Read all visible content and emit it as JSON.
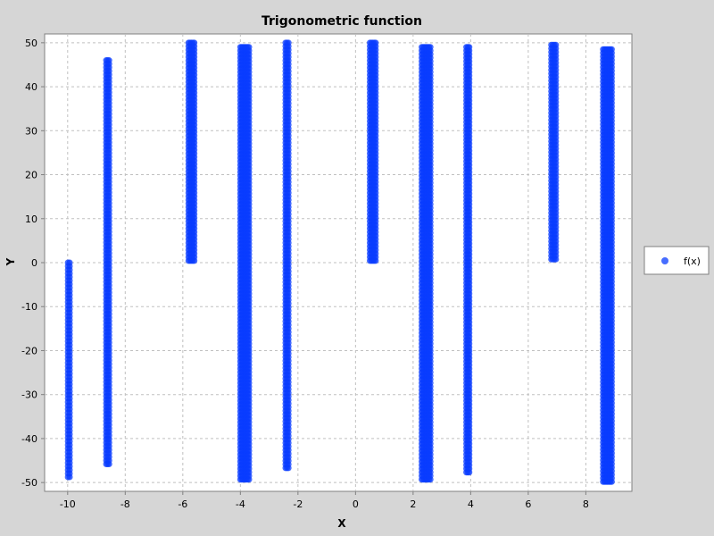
{
  "chart_data": {
    "type": "scatter",
    "title": "Trigonometric function",
    "xlabel": "X",
    "ylabel": "Y",
    "xlim": [
      -10.8,
      9.6
    ],
    "ylim": [
      -52,
      52
    ],
    "xticks": [
      -10,
      -8,
      -6,
      -4,
      -2,
      0,
      2,
      4,
      6,
      8
    ],
    "yticks": [
      -50,
      -40,
      -30,
      -20,
      -10,
      0,
      10,
      20,
      30,
      40,
      50
    ],
    "grid": true,
    "legend_position": "right",
    "colors": {
      "series": "#0a3cff",
      "background": "#d6d6d6",
      "plot": "#ffffff",
      "grid": "#c0c0c0"
    },
    "series": [
      {
        "name": "f(x)",
        "bands": [
          {
            "x": [
              -9.99,
              -9.93
            ],
            "y": [
              -49,
              0
            ]
          },
          {
            "x": [
              -8.66,
              -8.56
            ],
            "y": [
              -46.5,
              46
            ]
          },
          {
            "x": [
              -5.8,
              -5.6
            ],
            "y": [
              0,
              50
            ]
          },
          {
            "x": [
              -4.0,
              -3.7
            ],
            "y": [
              -50,
              49
            ]
          },
          {
            "x": [
              -2.43,
              -2.33
            ],
            "y": [
              -47,
              50
            ]
          },
          {
            "x": [
              0.5,
              0.7
            ],
            "y": [
              0,
              50
            ]
          },
          {
            "x": [
              2.3,
              2.6
            ],
            "y": [
              -50,
              49
            ]
          },
          {
            "x": [
              3.85,
              3.95
            ],
            "y": [
              -48,
              49
            ]
          },
          {
            "x": [
              6.8,
              6.96
            ],
            "y": [
              0,
              49.5
            ]
          },
          {
            "x": [
              8.6,
              8.9
            ],
            "y": [
              -50,
              48.5
            ]
          }
        ]
      }
    ]
  }
}
